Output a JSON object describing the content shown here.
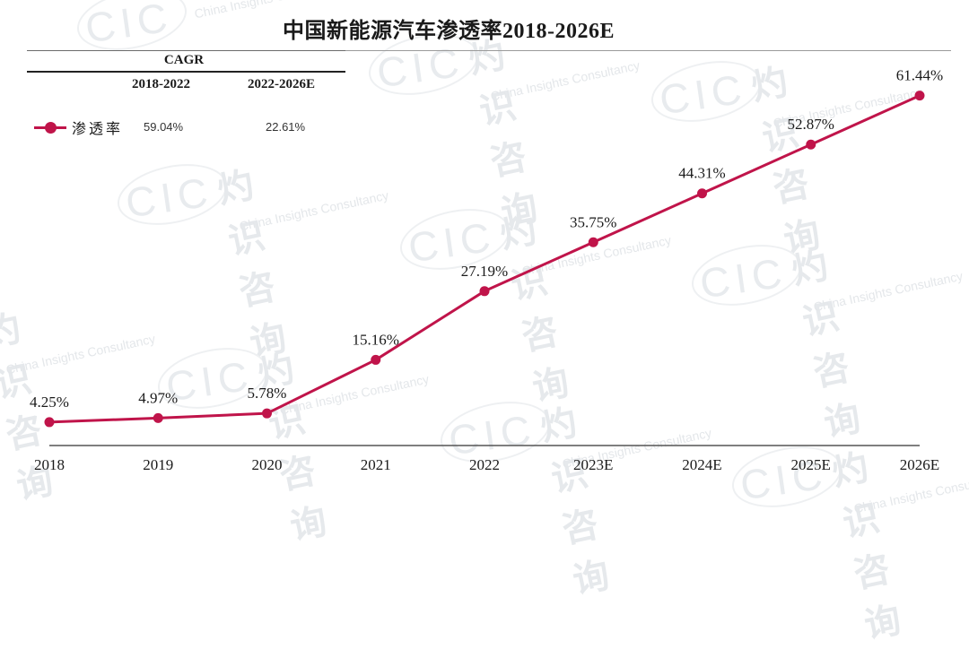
{
  "title": "中国新能源汽车渗透率2018-2026E",
  "cagr_table": {
    "header": "CAGR",
    "columns": [
      "2018-2022",
      "2022-2026E"
    ],
    "rows": [
      {
        "series": "渗透率",
        "values": [
          "59.04%",
          "22.61%"
        ]
      }
    ]
  },
  "watermark": {
    "logo": "CIC",
    "cn": "灼识咨询",
    "en": "China Insights Consultancy"
  },
  "colors": {
    "series": "#c0144a",
    "axis": "#555555",
    "text": "#1a1a1a"
  },
  "chart_data": {
    "type": "line",
    "title": "中国新能源汽车渗透率2018-2026E",
    "xlabel": "",
    "ylabel": "",
    "categories": [
      "2018",
      "2019",
      "2020",
      "2021",
      "2022",
      "2023E",
      "2024E",
      "2025E",
      "2026E"
    ],
    "series": [
      {
        "name": "渗透率",
        "values": [
          4.25,
          4.97,
          5.78,
          15.16,
          27.19,
          35.75,
          44.31,
          52.87,
          61.44
        ],
        "labels": [
          "4.25%",
          "4.97%",
          "5.78%",
          "15.16%",
          "27.19%",
          "35.75%",
          "44.31%",
          "52.87%",
          "61.44%"
        ],
        "color": "#c0144a"
      }
    ],
    "ylim": [
      0,
      70
    ],
    "grid": false,
    "y_axis_visible": false,
    "legend_position": "top-left",
    "annotations": [
      {
        "text": "CAGR 2018-2022: 59.04%"
      },
      {
        "text": "CAGR 2022-2026E: 22.61%"
      }
    ]
  }
}
